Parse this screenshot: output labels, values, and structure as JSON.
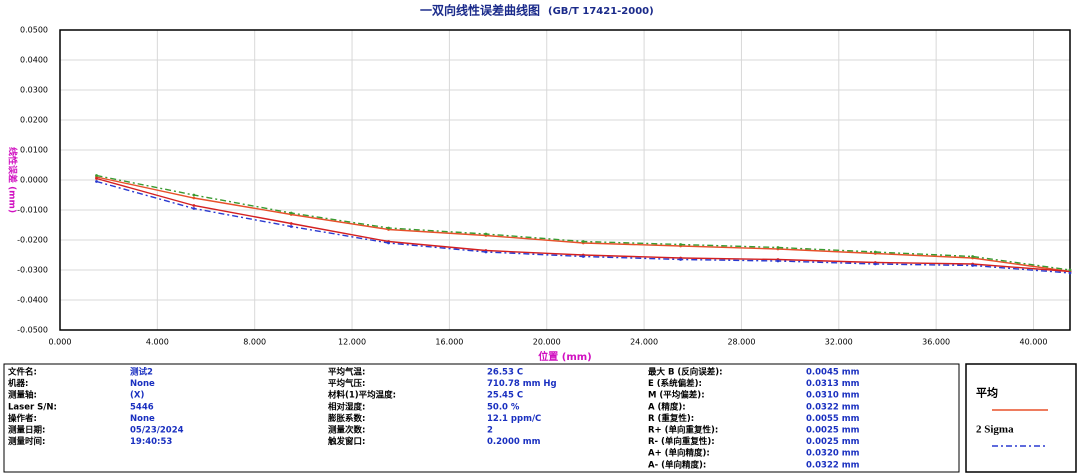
{
  "chart_data": {
    "type": "line",
    "title": "一双向线性误差曲线图",
    "subtitle": "(GB/T 17421-2000)",
    "x_label": "位置 (mm)",
    "y_label": "线性误差 (mm)",
    "x": [
      1.5,
      5.5,
      9.5,
      13.5,
      17.5,
      21.5,
      25.5,
      29.5,
      33.5,
      37.5,
      41.5
    ],
    "series": [
      {
        "name": "平均",
        "color": "#e8502a",
        "dash": "none",
        "values": [
          0.001,
          -0.006,
          -0.0115,
          -0.0165,
          -0.0185,
          -0.021,
          -0.022,
          -0.023,
          -0.0245,
          -0.026,
          -0.0305
        ]
      },
      {
        "color": "#d42020",
        "dash": "none",
        "values": [
          0.0005,
          -0.0085,
          -0.0145,
          -0.0205,
          -0.0235,
          -0.025,
          -0.026,
          -0.0265,
          -0.0275,
          -0.028,
          -0.0305
        ]
      },
      {
        "name": "2 Sigma",
        "color": "#2a3ad0",
        "dash": "6 3 2 3",
        "values": [
          -0.0005,
          -0.0095,
          -0.0155,
          -0.021,
          -0.024,
          -0.0255,
          -0.0265,
          -0.027,
          -0.028,
          -0.0285,
          -0.031
        ]
      },
      {
        "color": "#3a9a30",
        "dash": "6 3 2 3",
        "values": [
          0.0015,
          -0.005,
          -0.011,
          -0.016,
          -0.018,
          -0.0205,
          -0.0215,
          -0.0225,
          -0.024,
          -0.0255,
          -0.03
        ]
      }
    ],
    "xlim": [
      0,
      41.5
    ],
    "xticks": [
      {
        "value": 0,
        "label": "0.000"
      },
      {
        "value": 4,
        "label": "4.000"
      },
      {
        "value": 8,
        "label": "8.000"
      },
      {
        "value": 12,
        "label": "12.000"
      },
      {
        "value": 16,
        "label": "16.000"
      },
      {
        "value": 20,
        "label": "20.000"
      },
      {
        "value": 24,
        "label": "24.000"
      },
      {
        "value": 28,
        "label": "28.000"
      },
      {
        "value": 32,
        "label": "32.000"
      },
      {
        "value": 36,
        "label": "36.000"
      },
      {
        "value": 40,
        "label": "40.000"
      }
    ],
    "ylim": [
      -0.05,
      0.05
    ],
    "yticks": [
      {
        "value": 0.05,
        "label": "0.0500"
      },
      {
        "value": 0.04,
        "label": "0.0400"
      },
      {
        "value": 0.03,
        "label": "0.0300"
      },
      {
        "value": 0.02,
        "label": "0.0200"
      },
      {
        "value": 0.01,
        "label": "0.0100"
      },
      {
        "value": 0,
        "label": "0.0000"
      },
      {
        "value": -0.01,
        "label": "-0.0100"
      },
      {
        "value": -0.02,
        "label": "-0.0200"
      },
      {
        "value": -0.03,
        "label": "-0.0300"
      },
      {
        "value": -0.04,
        "label": "-0.0400"
      },
      {
        "value": -0.05,
        "label": "-0.0500"
      }
    ],
    "grid": true
  },
  "info": {
    "columns": [
      {
        "labels": [
          "文件名:",
          "机器:",
          "测量轴:",
          "Laser S/N:",
          "操作者:",
          "测量日期:",
          "测量时间:"
        ],
        "values": [
          "测试2",
          "None",
          "(X)",
          "5446",
          "None",
          "05/23/2024",
          "19:40:53"
        ]
      },
      {
        "labels": [
          "平均气温:",
          "平均气压:",
          "材料(1)平均温度:",
          "相对湿度:",
          "膨胀系数:",
          "测量次数:",
          "触发窗口:"
        ],
        "values": [
          "26.53 C",
          "710.78 mm Hg",
          "25.45 C",
          "50.0 %",
          "12.1 ppm/C",
          "2",
          "0.2000 mm"
        ]
      },
      {
        "labels": [
          "最大 B (反向误差):",
          "E (系统偏差):",
          "M (平均偏差):",
          "A (精度):",
          "R (重复性):",
          "R+ (单向重复性):",
          "R- (单向重复性):",
          "A+ (单向精度):",
          "A- (单向精度):"
        ],
        "values": [
          "0.0045 mm",
          "0.0313 mm",
          "0.0310 mm",
          "0.0322 mm",
          "0.0055 mm",
          "0.0025 mm",
          "0.0025 mm",
          "0.0320 mm",
          "0.0322 mm"
        ]
      }
    ]
  }
}
